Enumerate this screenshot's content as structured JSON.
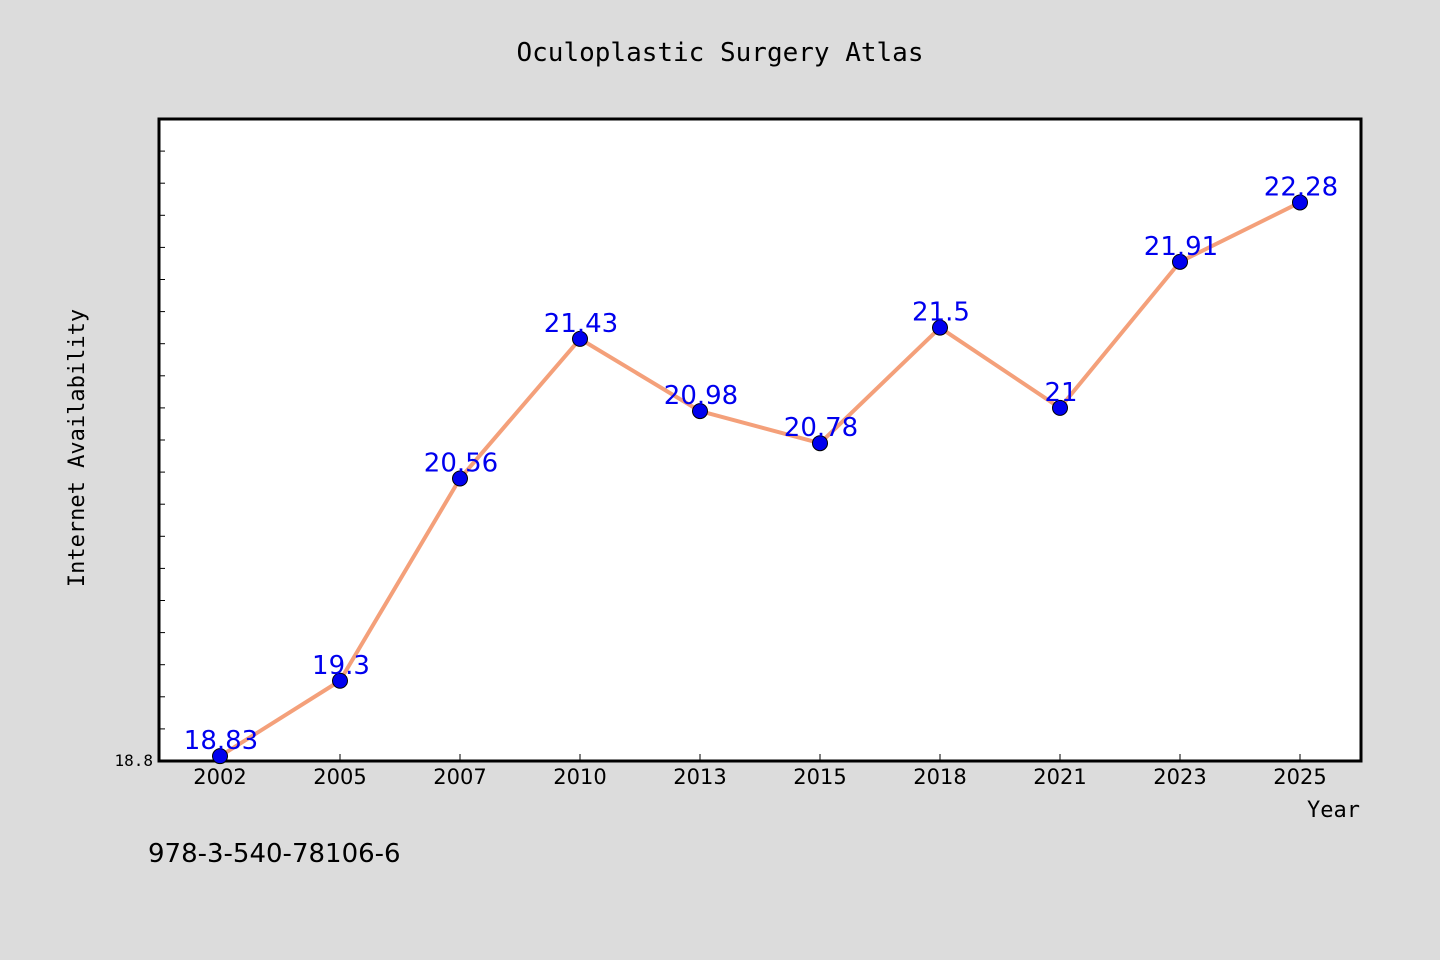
{
  "chart_data": {
    "type": "line",
    "title": "Oculoplastic Surgery Atlas",
    "xlabel": "Year",
    "ylabel": "Internet Availability",
    "categories": [
      "2002",
      "2005",
      "2007",
      "2010",
      "2013",
      "2015",
      "2018",
      "2021",
      "2023",
      "2025"
    ],
    "series": [
      {
        "values": [
          18.83,
          19.3,
          20.56,
          21.43,
          20.98,
          20.78,
          21.5,
          21,
          21.91,
          22.28
        ],
        "labels": [
          "18.83",
          "19.3",
          "20.56",
          "21.43",
          "20.98",
          "20.78",
          "21.5",
          "21",
          "21.91",
          "22.28"
        ],
        "line_color": "#f4a07a",
        "marker_color": "#0000ee",
        "label_color": "#0000ee"
      }
    ],
    "y_tick_label": "18.8",
    "ylim": [
      18.8,
      22.8
    ],
    "grid": false,
    "legend": "none"
  },
  "footer": {
    "isbn": "978-3-540-78106-6"
  },
  "colors": {
    "background": "#dcdcdc",
    "plot_background": "#ffffff",
    "axis": "#000000"
  }
}
